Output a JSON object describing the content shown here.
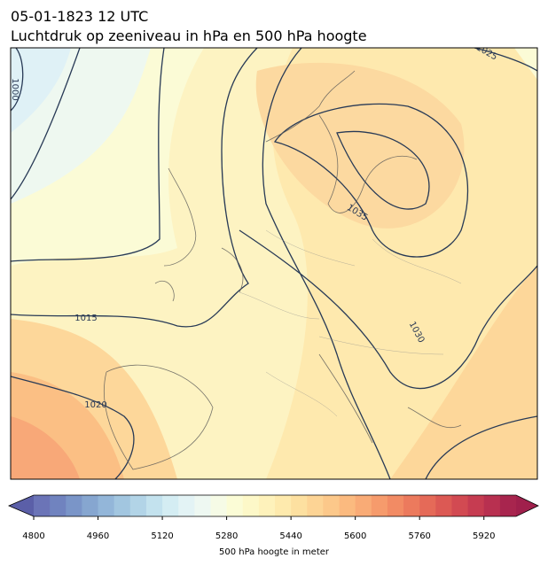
{
  "header": {
    "title": "05-01-1823 12 UTC",
    "subtitle": "Luchtdruk op zeeniveau in hPa en 500 hPa hoogte"
  },
  "contour_labels": [
    "1000",
    "1015",
    "1020",
    "1025",
    "1030",
    "1035"
  ],
  "colorbar": {
    "label": "500 hPa hoogte in meter",
    "lim": [
      4800,
      6000
    ],
    "ticks": [
      4800,
      4960,
      5120,
      5280,
      5440,
      5600,
      5760,
      5920
    ],
    "colors": [
      "#6b74b7",
      "#7083bf",
      "#7a95c8",
      "#86a6d0",
      "#93b6d9",
      "#a2c6e0",
      "#b2d4e7",
      "#c3e2ee",
      "#d4edf3",
      "#e3f3f5",
      "#eef8f2",
      "#f6fbe6",
      "#fbfcd6",
      "#fdf8c8",
      "#fef2bb",
      "#feeaad",
      "#fde0a0",
      "#fdd495",
      "#fcc88a",
      "#fbba7f",
      "#f9ab76",
      "#f69b6c",
      "#f28b64",
      "#ec7a5d",
      "#e56a58",
      "#dc5954",
      "#d24a52",
      "#c63c51",
      "#b83050",
      "#a8254e"
    ],
    "under_color": "#5b5fa8",
    "over_color": "#a0204c"
  }
}
